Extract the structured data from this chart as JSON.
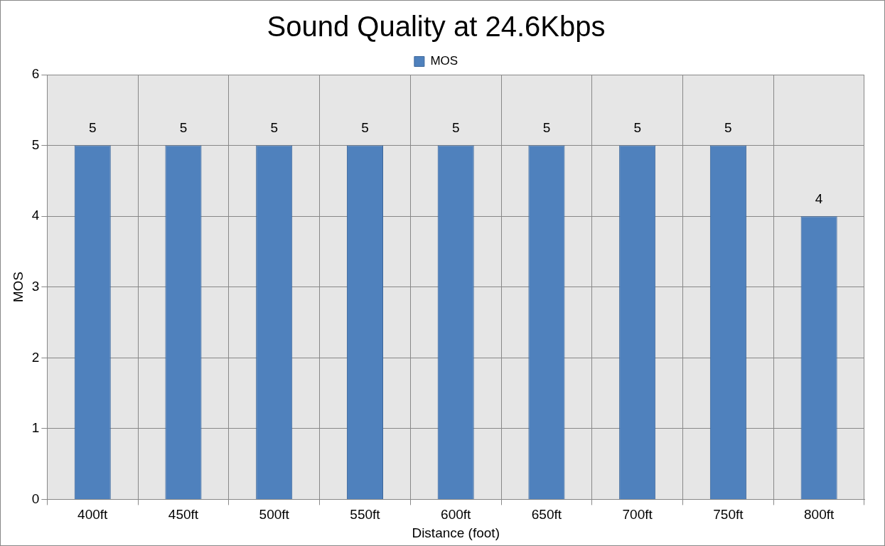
{
  "chart_data": {
    "type": "bar",
    "title": "Sound Quality at 24.6Kbps",
    "xlabel": "Distance (foot)",
    "ylabel": "MOS",
    "categories": [
      "400ft",
      "450ft",
      "500ft",
      "550ft",
      "600ft",
      "650ft",
      "700ft",
      "750ft",
      "800ft"
    ],
    "series": [
      {
        "name": "MOS",
        "color": "#4f81bd",
        "values": [
          5,
          5,
          5,
          5,
          5,
          5,
          5,
          5,
          4
        ]
      }
    ],
    "ylim": [
      0,
      6
    ],
    "yticks": [
      0,
      1,
      2,
      3,
      4,
      5,
      6
    ],
    "grid": true,
    "legend": "top",
    "data_labels": true
  }
}
